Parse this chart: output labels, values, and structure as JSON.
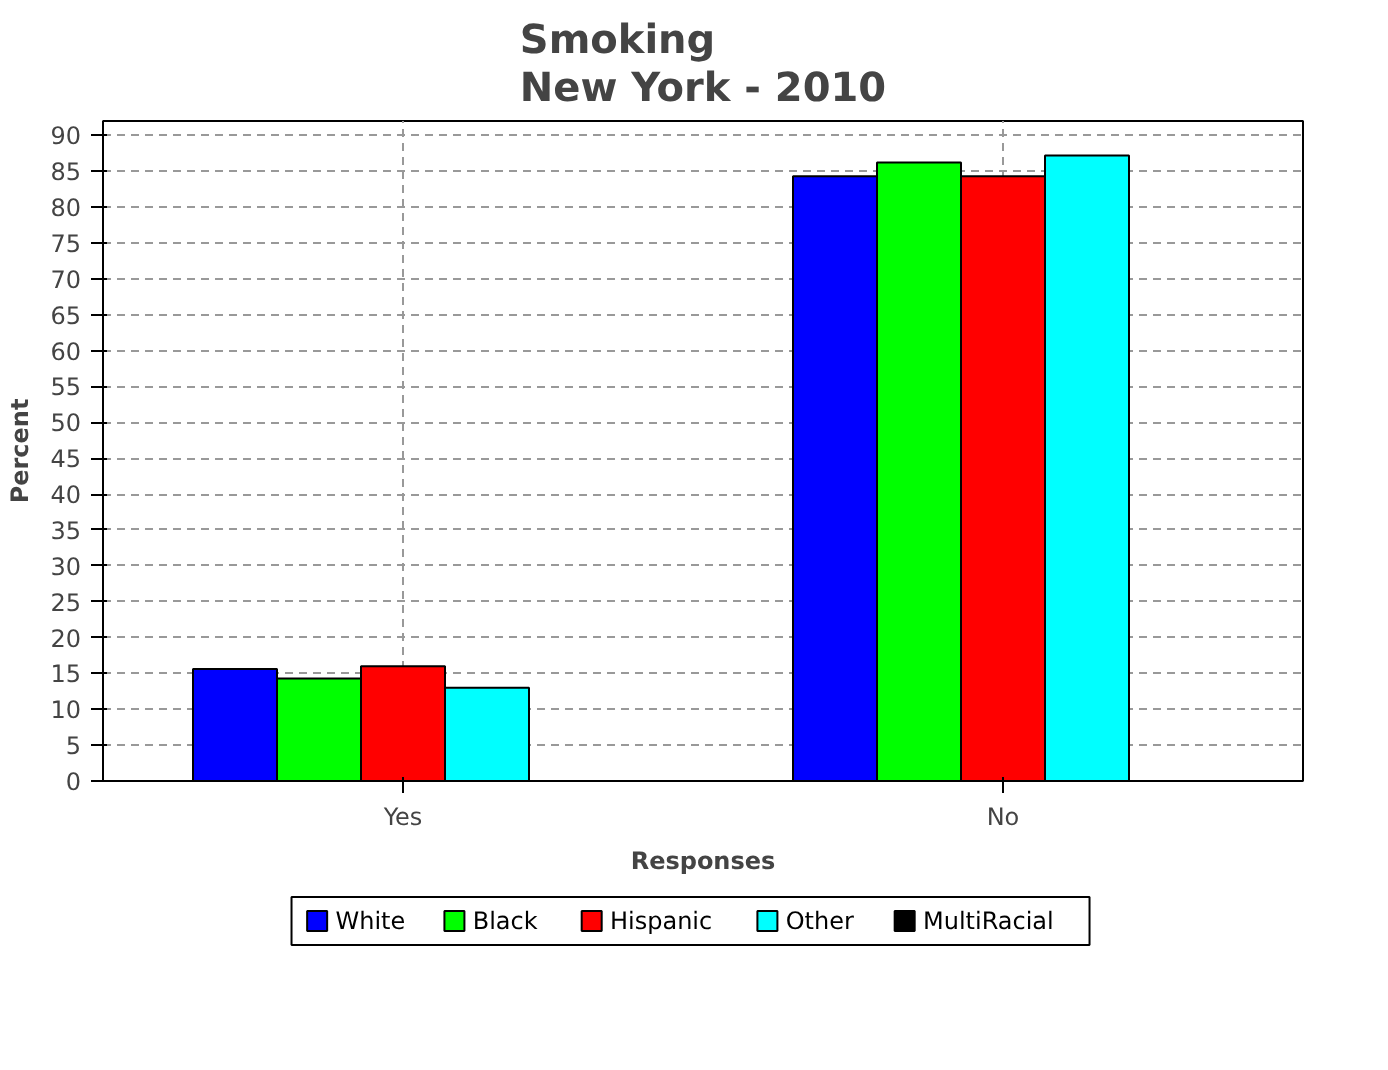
{
  "chart_data": {
    "type": "bar",
    "title": "Smoking\nNew York - 2010",
    "xlabel": "Responses",
    "ylabel": "Percent",
    "categories": [
      "Yes",
      "No"
    ],
    "series": [
      {
        "name": "White",
        "color": "#0000ff",
        "values": [
          15.6,
          84.3
        ]
      },
      {
        "name": "Black",
        "color": "#00ff00",
        "values": [
          14.3,
          86.2
        ]
      },
      {
        "name": "Hispanic",
        "color": "#ff0000",
        "values": [
          16,
          84.3
        ]
      },
      {
        "name": "Other",
        "color": "#00ffff",
        "values": [
          13,
          87.2
        ]
      },
      {
        "name": "MultiRacial",
        "color": "#000000",
        "values": [
          0,
          0
        ]
      }
    ],
    "ylim": [
      0,
      92
    ],
    "yticks": [
      0,
      5,
      10,
      15,
      20,
      25,
      30,
      35,
      40,
      45,
      50,
      55,
      60,
      65,
      70,
      75,
      80,
      85,
      90
    ],
    "grid": true,
    "legend": "bottom"
  }
}
